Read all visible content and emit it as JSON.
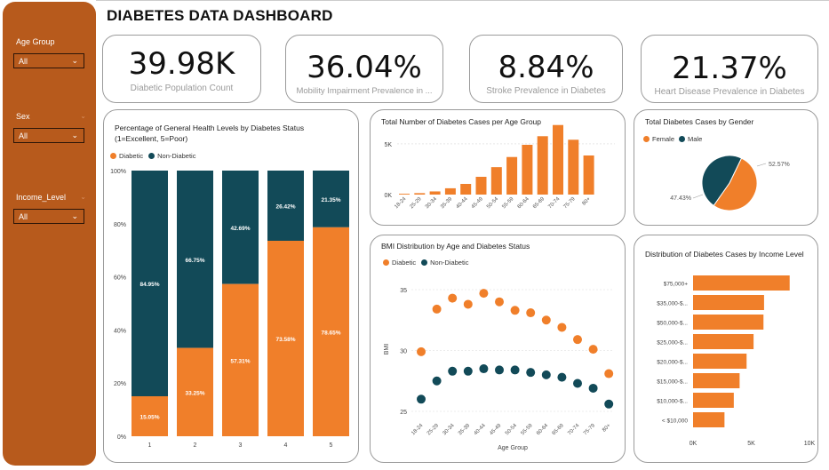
{
  "dashboard": {
    "title": "DIABETES DATA DASHBOARD"
  },
  "colors": {
    "diabetic": "#f07f2a",
    "non_diabetic": "#124a58",
    "sidebar": "#b75a1c"
  },
  "filters": [
    {
      "label": "Age Group",
      "value": "All"
    },
    {
      "label": "Sex",
      "value": "All"
    },
    {
      "label": "Income_Level",
      "value": "All"
    }
  ],
  "kpis": [
    {
      "value": "39.98K",
      "label": "Diabetic Population Count"
    },
    {
      "value": "36.04%",
      "label": "Mobility Impairment Prevalence in ..."
    },
    {
      "value": "8.84%",
      "label": "Stroke Prevalence in Diabetes"
    },
    {
      "value": "21.37%",
      "label": "Heart Disease Prevalence in Diabetes"
    }
  ],
  "chart_data": [
    {
      "id": "health",
      "type": "bar",
      "stacked": "100%",
      "title": "Percentage of General Health Levels by Diabetes Status (1=Excellent, 5=Poor)",
      "legend": [
        "Diabetic",
        "Non-Diabetic"
      ],
      "categories": [
        "1",
        "2",
        "3",
        "4",
        "5"
      ],
      "series": [
        {
          "name": "Diabetic",
          "values": [
            15.05,
            33.25,
            57.31,
            73.58,
            78.65
          ],
          "labels": [
            "15.05%",
            "33.25%",
            "57.31%",
            "73.58%",
            "78.65%"
          ]
        },
        {
          "name": "Non-Diabetic",
          "values": [
            84.95,
            66.75,
            42.69,
            26.42,
            21.35
          ],
          "labels": [
            "84.95%",
            "66.75%",
            "42.69%",
            "26.42%",
            "21.35%"
          ]
        }
      ],
      "yticks": [
        "0%",
        "20%",
        "40%",
        "60%",
        "80%",
        "100%"
      ],
      "ylim": [
        0,
        100
      ]
    },
    {
      "id": "age",
      "type": "bar",
      "title": "Total Number of Diabetes Cases per Age Group",
      "categories": [
        "18-24",
        "25-29",
        "30-34",
        "35-39",
        "40-44",
        "45-49",
        "50-54",
        "55-59",
        "60-64",
        "65-69",
        "70-74",
        "75-79",
        "80+"
      ],
      "values": [
        80,
        140,
        310,
        620,
        1050,
        1750,
        2700,
        3700,
        4900,
        5750,
        6850,
        5400,
        3850
      ],
      "yticks": [
        "0K",
        "5K"
      ],
      "ylim": [
        0,
        7000
      ]
    },
    {
      "id": "gender",
      "type": "pie",
      "title": "Total Diabetes Cases by Gender",
      "legend": [
        "Female",
        "Male"
      ],
      "values": [
        52.57,
        47.43
      ],
      "labels": [
        "52.57%",
        "47.43%"
      ]
    },
    {
      "id": "bmi",
      "type": "scatter",
      "title": "BMI Distribution by Age and Diabetes Status",
      "legend": [
        "Diabetic",
        "Non-Diabetic"
      ],
      "xlabel": "Age Group",
      "ylabel": "BMI",
      "categories": [
        "18-24",
        "25-29",
        "30-34",
        "35-39",
        "40-44",
        "45-49",
        "50-54",
        "55-59",
        "60-64",
        "65-69",
        "70-74",
        "75-79",
        "80+"
      ],
      "series": [
        {
          "name": "Diabetic",
          "values": [
            29.9,
            33.4,
            34.3,
            33.8,
            34.7,
            34.0,
            33.3,
            33.1,
            32.5,
            31.9,
            30.9,
            30.1,
            28.1
          ]
        },
        {
          "name": "Non-Diabetic",
          "values": [
            26.0,
            27.5,
            28.3,
            28.3,
            28.5,
            28.4,
            28.4,
            28.2,
            28.0,
            27.8,
            27.3,
            26.9,
            25.6
          ]
        }
      ],
      "yticks": [
        "25",
        "30",
        "35"
      ],
      "ylim": [
        24.5,
        36
      ]
    },
    {
      "id": "income",
      "type": "bar",
      "orientation": "horizontal",
      "title": "Distribution of Diabetes Cases by Income Level",
      "categories": [
        "$75,000+",
        "$35,000-$...",
        "$50,000-$...",
        "$25,000-$...",
        "$20,000-$...",
        "$15,000-$...",
        "$10,000-$...",
        "< $10,000"
      ],
      "values": [
        8300,
        6100,
        6050,
        5200,
        4600,
        4000,
        3500,
        2700
      ],
      "xticks": [
        "0K",
        "5K",
        "10K"
      ],
      "xlim": [
        0,
        10000
      ]
    }
  ]
}
